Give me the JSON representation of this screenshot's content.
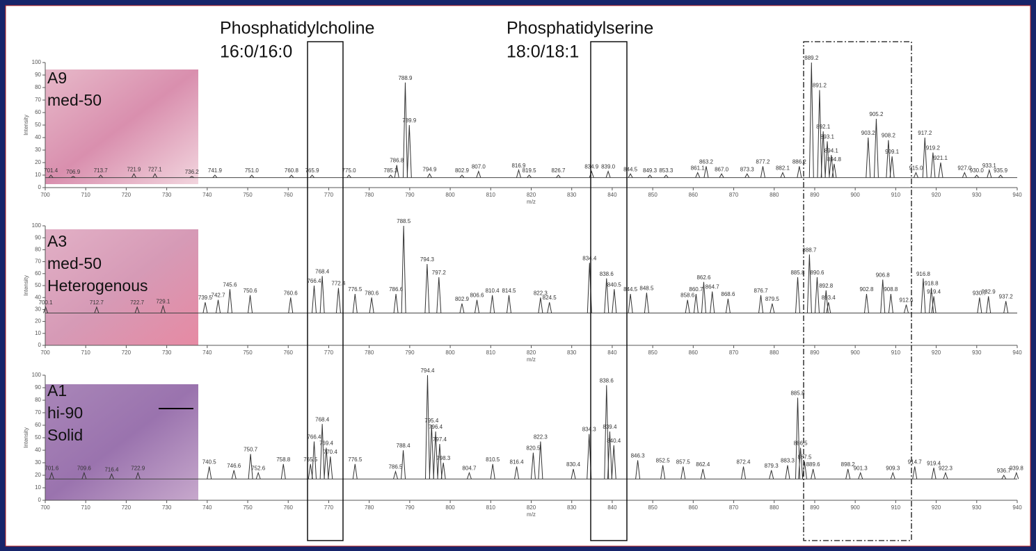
{
  "annotations": [
    "Phosphatidylcholine",
    "16:0/16:0",
    "Phosphatidylserine",
    "18:0/18:1"
  ],
  "chart_data": [
    {
      "type": "line",
      "sample": [
        "A9",
        "med-50"
      ],
      "xlabel": "m/z",
      "ylabel": "Intensity",
      "xlim": [
        700,
        940
      ],
      "ylim": [
        0,
        100
      ],
      "xticks": [
        700,
        710,
        720,
        730,
        740,
        750,
        760,
        770,
        780,
        790,
        800,
        810,
        820,
        830,
        840,
        850,
        860,
        870,
        880,
        890,
        900,
        910,
        920,
        930,
        940
      ],
      "yticks": [
        0,
        10,
        20,
        30,
        40,
        50,
        60,
        70,
        80,
        90,
        100
      ],
      "baseline": 8,
      "series": [
        {
          "color": "#333333",
          "x": [
            701.4,
            706.9,
            713.7,
            721.9,
            727.1,
            736.2,
            741.9,
            751.0,
            760.8,
            765.9,
            775.0,
            785.3,
            786.8,
            788.9,
            789.9,
            794.9,
            802.9,
            807.0,
            816.9,
            819.5,
            826.7,
            834.9,
            839.0,
            844.5,
            849.3,
            853.3,
            861.1,
            863.2,
            867.0,
            873.3,
            877.2,
            882.1,
            886.2,
            889.2,
            891.2,
            892.1,
            893.1,
            894.1,
            894.8,
            903.2,
            905.2,
            908.2,
            909.1,
            915.0,
            917.2,
            919.2,
            921.1,
            927.0,
            930.0,
            933.1,
            935.9
          ],
          "x_labels": [
            "701.4",
            "706.9",
            "713.7",
            "721.9",
            "727.1",
            "736.2",
            "741.9",
            "751.0",
            "760.8",
            "765.9",
            "775.0",
            "785.3",
            "786.8",
            "788.9",
            "789.9",
            "794.9",
            "802.9",
            "807.0",
            "816.9",
            "819.5",
            "826.7",
            "834.9",
            "839.0",
            "844.5",
            "849.3",
            "853.3",
            "861.1",
            "863.2",
            "867.0",
            "873.3",
            "877.2",
            "882.1",
            "886.2",
            "889.2",
            "891.2",
            "892.1",
            "893.1",
            "894.1",
            "894.8",
            "903.2",
            "905.2",
            "908.2",
            "909.1",
            "915.0",
            "917.2",
            "919.2",
            "921.1",
            "927.0",
            "930.0",
            "933.1",
            "935.9"
          ],
          "values": [
            10,
            9,
            10,
            11,
            11,
            9,
            10,
            10,
            10,
            10,
            10,
            10,
            18,
            84,
            50,
            11,
            10,
            13,
            14,
            10,
            10,
            13,
            13,
            11,
            10,
            10,
            12,
            17,
            11,
            11,
            17,
            12,
            17,
            100,
            78,
            45,
            37,
            26,
            19,
            40,
            55,
            38,
            25,
            12,
            40,
            28,
            20,
            12,
            10,
            14,
            10
          ]
        }
      ]
    },
    {
      "type": "line",
      "sample": [
        "A3",
        "med-50",
        "Heterogenous"
      ],
      "xlabel": "m/z",
      "ylabel": "Intensity",
      "xlim": [
        700,
        940
      ],
      "ylim": [
        0,
        100
      ],
      "xticks": [
        700,
        710,
        720,
        730,
        740,
        750,
        760,
        770,
        780,
        790,
        800,
        810,
        820,
        830,
        840,
        850,
        860,
        870,
        880,
        890,
        900,
        910,
        920,
        930,
        940
      ],
      "yticks": [
        0,
        10,
        20,
        30,
        40,
        50,
        60,
        70,
        80,
        90,
        100
      ],
      "baseline": 27,
      "series": [
        {
          "color": "#333333",
          "x": [
            700.1,
            712.7,
            722.7,
            729.1,
            739.5,
            742.7,
            745.6,
            750.6,
            760.6,
            766.4,
            768.4,
            772.4,
            776.5,
            780.6,
            786.6,
            788.5,
            794.3,
            797.2,
            802.9,
            806.6,
            810.4,
            814.5,
            822.3,
            824.5,
            834.4,
            838.6,
            840.5,
            844.5,
            848.5,
            858.6,
            860.7,
            862.6,
            864.7,
            868.6,
            876.7,
            879.5,
            885.8,
            888.7,
            890.6,
            892.8,
            893.4,
            902.8,
            906.8,
            908.8,
            912.6,
            916.8,
            918.8,
            919.4,
            930.7,
            932.9,
            937.2
          ],
          "x_labels": [
            "700.1",
            "712.7",
            "722.7",
            "729.1",
            "739.5",
            "742.7",
            "745.6",
            "750.6",
            "760.6",
            "766.4",
            "768.4",
            "772.4",
            "776.5",
            "780.6",
            "786.6",
            "788.5",
            "794.3",
            "797.2",
            "802.9",
            "806.6",
            "810.4",
            "814.5",
            "822.3",
            "824.5",
            "834.4",
            "838.6",
            "840.5",
            "844.5",
            "848.5",
            "858.6",
            "860.7",
            "862.6",
            "864.7",
            "868.6",
            "876.7",
            "879.5",
            "885.8",
            "888.7",
            "890.6",
            "892.8",
            "893.4",
            "902.8",
            "906.8",
            "908.8",
            "912.6",
            "916.8",
            "918.8",
            "919.4",
            "930.7",
            "932.9",
            "937.2"
          ],
          "values": [
            32,
            32,
            32,
            33,
            36,
            38,
            47,
            42,
            40,
            50,
            58,
            48,
            43,
            40,
            43,
            100,
            68,
            57,
            35,
            38,
            42,
            42,
            40,
            36,
            69,
            56,
            47,
            43,
            44,
            38,
            43,
            53,
            45,
            39,
            42,
            35,
            57,
            76,
            57,
            46,
            36,
            43,
            55,
            43,
            34,
            56,
            48,
            41,
            40,
            41,
            37
          ]
        }
      ]
    },
    {
      "type": "line",
      "sample": [
        "A1",
        "hi-90",
        "Solid"
      ],
      "xlabel": "m/z",
      "ylabel": "Intensity",
      "xlim": [
        700,
        940
      ],
      "ylim": [
        0,
        100
      ],
      "xticks": [
        700,
        710,
        720,
        730,
        740,
        750,
        760,
        770,
        780,
        790,
        800,
        810,
        820,
        830,
        840,
        850,
        860,
        870,
        880,
        890,
        900,
        910,
        920,
        930,
        940
      ],
      "yticks": [
        0,
        10,
        20,
        30,
        40,
        50,
        60,
        70,
        80,
        90,
        100
      ],
      "baseline": 17,
      "series": [
        {
          "color": "#333333",
          "x": [
            701.6,
            709.6,
            716.4,
            722.9,
            740.5,
            746.6,
            750.7,
            752.6,
            758.8,
            765.5,
            766.4,
            768.4,
            769.4,
            770.4,
            776.5,
            786.5,
            788.4,
            794.4,
            795.4,
            796.4,
            797.4,
            798.3,
            804.7,
            810.5,
            816.4,
            820.5,
            822.3,
            830.4,
            834.3,
            838.6,
            839.4,
            840.4,
            846.3,
            852.5,
            857.5,
            862.4,
            872.4,
            879.3,
            883.3,
            885.8,
            886.5,
            887.5,
            889.6,
            898.2,
            901.3,
            909.3,
            914.7,
            919.4,
            922.3,
            936.7,
            939.8
          ],
          "x_labels": [
            "701.6",
            "709.6",
            "716.4",
            "722.9",
            "740.5",
            "746.6",
            "750.7",
            "752.6",
            "758.8",
            "765.5",
            "766.4",
            "768.4",
            "769.4",
            "770.4",
            "776.5",
            "786.5",
            "788.4",
            "794.4",
            "795.4",
            "796.4",
            "797.4",
            "798.3",
            "804.7",
            "810.5",
            "816.4",
            "820.5",
            "822.3",
            "830.4",
            "834.3",
            "838.6",
            "839.4",
            "840.4",
            "846.3",
            "852.5",
            "857.5",
            "862.4",
            "872.4",
            "879.3",
            "883.3",
            "885.8",
            "886.5",
            "887.5",
            "889.6",
            "898.2",
            "901.3",
            "909.3",
            "914.7",
            "919.4",
            "922.3",
            "936.7",
            "939.8"
          ],
          "values": [
            22,
            22,
            21,
            22,
            27,
            24,
            37,
            22,
            29,
            29,
            47,
            61,
            42,
            35,
            29,
            23,
            40,
            100,
            60,
            55,
            45,
            30,
            22,
            29,
            27,
            38,
            47,
            25,
            53,
            92,
            55,
            44,
            32,
            28,
            27,
            25,
            27,
            24,
            28,
            82,
            42,
            31,
            25,
            25,
            22,
            22,
            27,
            26,
            22,
            20,
            22
          ]
        }
      ]
    }
  ]
}
